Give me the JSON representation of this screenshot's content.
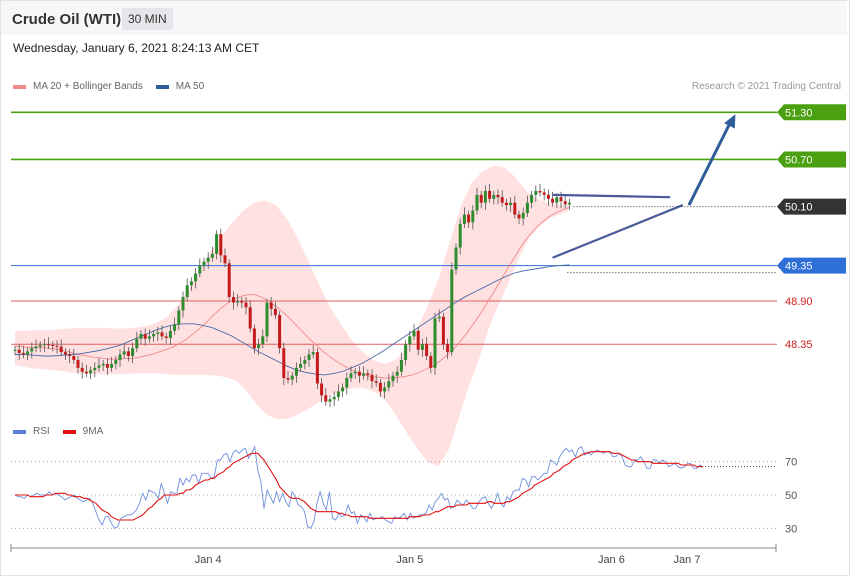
{
  "header": {
    "title": "Crude Oil (WTI)",
    "timeframe": "30 MIN"
  },
  "date_line": "Wednesday, January 6, 2021 8:24:13 AM CET",
  "legend_main": [
    {
      "label": "MA 20 + Bollinger Bands",
      "color": "#f08a8a"
    },
    {
      "label": "MA 50",
      "color": "#2e5f9a"
    }
  ],
  "legend_rsi": [
    {
      "label": "RSI",
      "color": "#5a7fd6"
    },
    {
      "label": "9MA",
      "color": "#e01010"
    }
  ],
  "credit": "Research © 2021 Trading Central",
  "colors": {
    "up": "#2e8b2e",
    "down": "#c41a1a",
    "green_level": "#4aa010",
    "blue_level": "#2f6fd8",
    "red_level": "#e06060",
    "current": "#333333",
    "arrow": "#2f5d9a",
    "band_fill": "#ffe1e1"
  },
  "chart_data": [
    {
      "type": "candlestick",
      "title": "",
      "xlabel": "",
      "ylabel": "",
      "ylim": [
        47.45,
        51.52
      ],
      "x_ticks": [
        {
          "label": "Jan 4",
          "at": 46
        },
        {
          "label": "Jan 5",
          "at": 94
        },
        {
          "label": "Jan 6",
          "at": 142
        },
        {
          "label": "Jan 7",
          "at": 160
        }
      ],
      "levels": [
        {
          "value": 51.3,
          "label": "51.30",
          "kind": "resistance"
        },
        {
          "value": 50.7,
          "label": "50.70",
          "kind": "resistance"
        },
        {
          "value": 50.1,
          "label": "50.10",
          "kind": "current"
        },
        {
          "value": 49.35,
          "label": "49.35",
          "kind": "pivot"
        },
        {
          "value": 48.9,
          "label": "48.90",
          "kind": "support"
        },
        {
          "value": 48.35,
          "label": "48.35",
          "kind": "support"
        }
      ],
      "close": [
        48.28,
        48.24,
        48.22,
        48.26,
        48.3,
        48.32,
        48.34,
        48.35,
        48.34,
        48.33,
        48.32,
        48.25,
        48.22,
        48.2,
        48.15,
        48.05,
        48.0,
        47.98,
        48.02,
        48.05,
        48.08,
        48.1,
        48.05,
        48.1,
        48.15,
        48.22,
        48.26,
        48.2,
        48.3,
        48.42,
        48.48,
        48.42,
        48.45,
        48.48,
        48.5,
        48.45,
        48.43,
        48.52,
        48.6,
        48.78,
        48.95,
        49.1,
        49.15,
        49.25,
        49.35,
        49.4,
        49.45,
        49.5,
        49.75,
        49.48,
        49.38,
        48.95,
        48.88,
        48.9,
        48.88,
        48.82,
        48.55,
        48.3,
        48.35,
        48.45,
        48.88,
        48.8,
        48.72,
        48.3,
        47.92,
        47.9,
        47.95,
        48.05,
        48.1,
        48.15,
        48.22,
        48.25,
        47.85,
        47.7,
        47.62,
        47.65,
        47.68,
        47.75,
        47.8,
        47.92,
        47.98,
        48.0,
        47.95,
        47.98,
        47.96,
        47.88,
        47.86,
        47.75,
        47.8,
        47.88,
        47.95,
        48.0,
        48.15,
        48.35,
        48.45,
        48.52,
        48.28,
        48.35,
        48.2,
        48.05,
        48.68,
        48.7,
        48.35,
        48.25,
        49.3,
        49.58,
        49.88,
        50.0,
        49.9,
        50.05,
        50.25,
        50.15,
        50.3,
        50.2,
        50.25,
        50.22,
        50.15,
        50.12,
        50.15,
        50.0,
        49.95,
        50.02,
        50.15,
        50.25,
        50.3,
        50.28,
        50.25,
        50.2,
        50.15,
        50.22,
        50.17,
        50.13,
        50.15
      ],
      "ma20": [
        48.32,
        48.32,
        48.31,
        48.31,
        48.31,
        48.3,
        48.29,
        48.27,
        48.25,
        48.22,
        48.21,
        48.19,
        48.18,
        48.17,
        48.16,
        48.16,
        48.17,
        48.17,
        48.18,
        48.2,
        48.22,
        48.25,
        48.28,
        48.31,
        48.36,
        48.41,
        48.48,
        48.55,
        48.63,
        48.72,
        48.8,
        48.87,
        48.92,
        48.96,
        48.98,
        48.98,
        48.95,
        48.9,
        48.84,
        48.77,
        48.69,
        48.6,
        48.51,
        48.42,
        48.34,
        48.26,
        48.19,
        48.13,
        48.08,
        48.03,
        47.99,
        47.96,
        47.94,
        47.93,
        47.92,
        47.92,
        47.93,
        47.94,
        47.96,
        47.99,
        48.03,
        48.07,
        48.13,
        48.2,
        48.28,
        48.38,
        48.49,
        48.61,
        48.74,
        48.88,
        49.02,
        49.17,
        49.32,
        49.46,
        49.6,
        49.72,
        49.82,
        49.9,
        49.97,
        50.02,
        50.06,
        50.09
      ],
      "ma50": [
        48.22,
        48.22,
        48.21,
        48.2,
        48.2,
        48.21,
        48.22,
        48.23,
        48.25,
        48.27,
        48.3,
        48.33,
        48.38,
        48.43,
        48.48,
        48.53,
        48.57,
        48.6,
        48.61,
        48.61,
        48.59,
        48.56,
        48.51,
        48.46,
        48.39,
        48.32,
        48.25,
        48.19,
        48.13,
        48.07,
        48.02,
        47.99,
        47.97,
        47.96,
        47.98,
        48.01,
        48.06,
        48.11,
        48.18,
        48.25,
        48.33,
        48.41,
        48.49,
        48.57,
        48.65,
        48.73,
        48.81,
        48.89,
        48.96,
        49.02,
        49.08,
        49.14,
        49.2,
        49.25,
        49.28,
        49.3,
        49.32,
        49.34,
        49.35,
        49.36
      ],
      "bb_upper": [
        48.52,
        48.52,
        48.53,
        48.53,
        48.54,
        48.55,
        48.56,
        48.56,
        48.56,
        48.55,
        48.55,
        48.56,
        48.58,
        48.62,
        48.7,
        48.85,
        49.05,
        49.3,
        49.52,
        49.72,
        49.9,
        50.05,
        50.15,
        50.18,
        50.12,
        49.95,
        49.7,
        49.4,
        49.1,
        48.82,
        48.6,
        48.4,
        48.25,
        48.15,
        48.1,
        48.15,
        48.3,
        48.55,
        48.85,
        49.2,
        49.65,
        50.1,
        50.4,
        50.55,
        50.62,
        50.6,
        50.48,
        50.3,
        50.2,
        50.15,
        50.13,
        50.12
      ],
      "bb_lower": [
        48.08,
        48.06,
        48.04,
        48.03,
        48.02,
        48.0,
        47.98,
        47.97,
        47.97,
        47.97,
        47.97,
        47.97,
        47.98,
        47.98,
        47.98,
        47.97,
        47.96,
        47.96,
        47.96,
        47.96,
        47.95,
        47.93,
        47.88,
        47.75,
        47.58,
        47.45,
        47.4,
        47.4,
        47.45,
        47.52,
        47.6,
        47.68,
        47.74,
        47.78,
        47.8,
        47.78,
        47.72,
        47.6,
        47.4,
        47.2,
        47.0,
        46.85,
        46.8,
        47.0,
        47.4,
        47.8,
        48.15,
        48.55,
        48.85,
        49.15,
        49.45,
        49.7,
        49.85,
        49.95,
        50.0,
        50.05
      ],
      "trend_lines": [
        {
          "from": {
            "x": 128,
            "y": 50.25
          },
          "to": {
            "x": 156,
            "y": 50.22
          }
        },
        {
          "from": {
            "x": 128,
            "y": 49.45
          },
          "to": {
            "x": 159,
            "y": 50.12
          }
        }
      ],
      "projection": {
        "from": {
          "x": 160,
          "y": 50.12
        },
        "to": {
          "x": 172,
          "y": 51.3
        }
      }
    },
    {
      "type": "line",
      "title": "",
      "ylim": [
        20,
        80
      ],
      "y_ticks": [
        70,
        50,
        30
      ],
      "rsi": [
        50,
        49,
        49,
        48,
        50,
        49,
        50,
        51,
        50,
        50,
        50,
        52,
        50,
        51,
        50,
        49,
        47,
        48,
        49,
        50,
        48,
        47,
        46,
        47,
        48,
        45,
        40,
        35,
        32,
        37,
        37,
        33,
        30,
        31,
        36,
        37,
        38,
        38,
        39,
        41,
        45,
        51,
        47,
        53,
        52,
        51,
        48,
        57,
        51,
        45,
        52,
        51,
        51,
        60,
        56,
        60,
        58,
        62,
        62,
        57,
        63,
        63,
        63,
        60,
        61,
        71,
        71,
        74,
        75,
        70,
        75,
        77,
        75,
        77,
        78,
        72,
        75,
        79,
        65,
        58,
        42,
        53,
        49,
        45,
        52,
        46,
        51,
        46,
        43,
        52,
        49,
        44,
        43,
        40,
        31,
        30,
        34,
        45,
        52,
        45,
        41,
        52,
        36,
        35,
        39,
        37,
        38,
        44,
        39,
        40,
        33,
        38,
        37,
        34,
        39,
        35,
        36,
        36,
        37,
        35,
        34,
        33,
        37,
        36,
        37,
        39,
        35,
        39,
        36,
        37,
        38,
        38,
        39,
        44,
        41,
        46,
        48,
        51,
        47,
        48,
        42,
        43,
        47,
        45,
        44,
        47,
        45,
        42,
        42,
        46,
        48,
        49,
        45,
        42,
        45,
        51,
        45,
        43,
        49,
        47,
        52,
        53,
        53,
        60,
        59,
        55,
        61,
        61,
        59,
        61,
        63,
        63,
        71,
        70,
        68,
        73,
        76,
        78,
        76,
        77,
        73,
        78,
        79,
        74,
        76,
        74,
        76,
        77,
        76,
        75,
        76,
        76,
        73,
        73,
        75,
        73,
        68,
        67,
        67,
        71,
        71,
        73,
        70,
        66,
        66,
        71,
        71,
        69,
        71,
        70,
        67,
        68,
        69,
        67,
        66,
        67,
        69,
        69,
        66,
        66,
        68,
        67
      ],
      "ma9": [
        50,
        50,
        50,
        50,
        50,
        49,
        49,
        49,
        49,
        49,
        50,
        50,
        50,
        51,
        51,
        51,
        51,
        50,
        50,
        49,
        49,
        49,
        48,
        48,
        47,
        46,
        45,
        43,
        41,
        40,
        39,
        37,
        36,
        35,
        35,
        35,
        35,
        35,
        35,
        36,
        37,
        38,
        40,
        42,
        43,
        45,
        47,
        48,
        50,
        50,
        50,
        50,
        50,
        51,
        51,
        53,
        53,
        54,
        56,
        57,
        58,
        59,
        59,
        60,
        60,
        62,
        63,
        64,
        66,
        67,
        69,
        70,
        71,
        72,
        73,
        74,
        75,
        75,
        75,
        73,
        71,
        68,
        65,
        62,
        59,
        55,
        53,
        51,
        49,
        48,
        48,
        48,
        47,
        46,
        44,
        42,
        41,
        40,
        40,
        40,
        40,
        40,
        40,
        40,
        39,
        39,
        38,
        38,
        37,
        37,
        37,
        37,
        37,
        37,
        36,
        36,
        36,
        36,
        36,
        36,
        36,
        36,
        36,
        36,
        36,
        36,
        36,
        37,
        37,
        37,
        37,
        38,
        38,
        38,
        39,
        40,
        40,
        41,
        42,
        43,
        43,
        43,
        44,
        44,
        44,
        44,
        45,
        45,
        45,
        45,
        45,
        45,
        46,
        46,
        45,
        45,
        45,
        45,
        46,
        46,
        47,
        48,
        49,
        51,
        52,
        53,
        54,
        56,
        57,
        58,
        59,
        60,
        61,
        63,
        64,
        65,
        67,
        68,
        69,
        71,
        72,
        73,
        74,
        75,
        75,
        76,
        76,
        76,
        76,
        76,
        76,
        76,
        75,
        75,
        75,
        74,
        73,
        72,
        71,
        71,
        70,
        70,
        70,
        70,
        70,
        69,
        69,
        69,
        69,
        69,
        69,
        69,
        69,
        69,
        68,
        68,
        68,
        68,
        68,
        67,
        67,
        67
      ]
    }
  ]
}
